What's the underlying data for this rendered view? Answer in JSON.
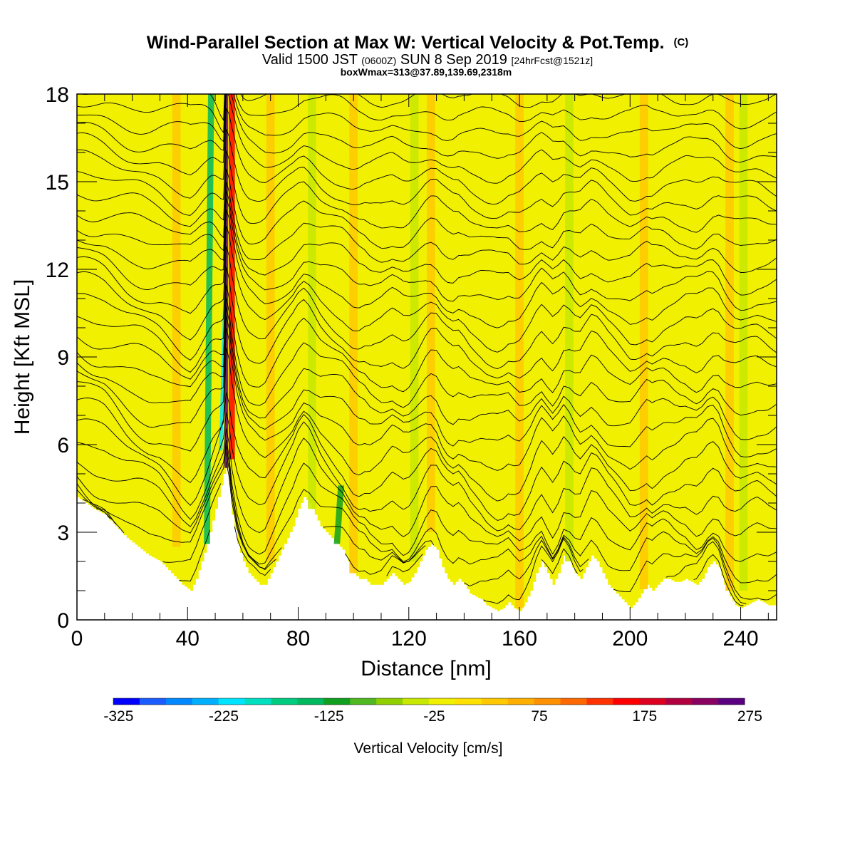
{
  "chart_data": {
    "type": "heatmap",
    "title": "Wind-Parallel Section at Max W: Vertical Velocity & Pot.Temp.",
    "title_mark": "(C)",
    "subtitle_main_1": "Valid 1500 JST",
    "subtitle_small_1": "(0600Z)",
    "subtitle_main_2": "SUN 8 Sep 2019",
    "subtitle_small_2": "[24hrFcst@1521z]",
    "subtitle_2": "boxWmax=313@37.89,139.69,2318m",
    "xlabel": "Distance [nm]",
    "ylabel": "Height [Kft MSL]",
    "xlim": [
      0,
      253
    ],
    "ylim": [
      0,
      18
    ],
    "x_ticks": [
      "0",
      "40",
      "80",
      "120",
      "160",
      "200",
      "240"
    ],
    "y_ticks": [
      "0",
      "3",
      "6",
      "9",
      "12",
      "15",
      "18"
    ],
    "colorbar": {
      "label": "Vertical Velocity [cm/s]",
      "tick_labels": [
        "-325",
        "-225",
        "-125",
        "-25",
        "75",
        "175",
        "275"
      ],
      "colors": [
        "#0000ff",
        "#1a5cff",
        "#0088ff",
        "#00b0ff",
        "#00e5ff",
        "#00e0c0",
        "#00cc80",
        "#00b860",
        "#10a020",
        "#50b820",
        "#90d000",
        "#c8e800",
        "#f0f000",
        "#ffe000",
        "#ffc800",
        "#ffaf00",
        "#ff9000",
        "#ff6800",
        "#ff3200",
        "#ff0000",
        "#dd0020",
        "#b00040",
        "#880060",
        "#5a0080"
      ]
    },
    "background_color": "#f0f000",
    "updraft_max_cm_s": 313,
    "max_location": "37.89,139.69",
    "max_height_m": 2318,
    "terrain_profile": [
      [
        0,
        4.2
      ],
      [
        3,
        4.0
      ],
      [
        6,
        3.8
      ],
      [
        10,
        3.6
      ],
      [
        14,
        3.2
      ],
      [
        18,
        2.8
      ],
      [
        22,
        2.5
      ],
      [
        26,
        2.2
      ],
      [
        30,
        2.0
      ],
      [
        34,
        1.6
      ],
      [
        38,
        1.2
      ],
      [
        41,
        1.0
      ],
      [
        43,
        1.4
      ],
      [
        45,
        2.0
      ],
      [
        47,
        2.6
      ],
      [
        49,
        3.4
      ],
      [
        51,
        4.2
      ],
      [
        53,
        5.0
      ],
      [
        54,
        5.2
      ],
      [
        55,
        4.6
      ],
      [
        56,
        3.6
      ],
      [
        58,
        2.6
      ],
      [
        60,
        2.0
      ],
      [
        62,
        1.6
      ],
      [
        64,
        1.4
      ],
      [
        66,
        1.2
      ],
      [
        68,
        1.2
      ],
      [
        70,
        1.6
      ],
      [
        72,
        2.0
      ],
      [
        74,
        2.4
      ],
      [
        76,
        2.8
      ],
      [
        78,
        3.2
      ],
      [
        80,
        3.8
      ],
      [
        82,
        4.2
      ],
      [
        84,
        4.0
      ],
      [
        86,
        3.6
      ],
      [
        88,
        3.2
      ],
      [
        90,
        3.0
      ],
      [
        92,
        2.8
      ],
      [
        94,
        2.6
      ],
      [
        96,
        2.4
      ],
      [
        98,
        2.0
      ],
      [
        100,
        1.6
      ],
      [
        102,
        1.4
      ],
      [
        104,
        1.4
      ],
      [
        106,
        1.2
      ],
      [
        108,
        1.2
      ],
      [
        110,
        1.2
      ],
      [
        112,
        1.4
      ],
      [
        114,
        1.6
      ],
      [
        116,
        1.4
      ],
      [
        118,
        1.2
      ],
      [
        120,
        1.3
      ],
      [
        122,
        1.6
      ],
      [
        124,
        2.0
      ],
      [
        126,
        2.4
      ],
      [
        128,
        2.6
      ],
      [
        130,
        2.4
      ],
      [
        132,
        1.8
      ],
      [
        134,
        1.4
      ],
      [
        136,
        1.2
      ],
      [
        138,
        1.4
      ],
      [
        140,
        1.2
      ],
      [
        142,
        0.9
      ],
      [
        144,
        0.8
      ],
      [
        146,
        0.7
      ],
      [
        148,
        0.5
      ],
      [
        150,
        0.4
      ],
      [
        152,
        0.3
      ],
      [
        154,
        0.4
      ],
      [
        156,
        0.6
      ],
      [
        158,
        0.4
      ],
      [
        160,
        0.3
      ],
      [
        162,
        0.6
      ],
      [
        164,
        1.0
      ],
      [
        166,
        1.6
      ],
      [
        168,
        2.0
      ],
      [
        170,
        1.6
      ],
      [
        172,
        1.2
      ],
      [
        174,
        1.6
      ],
      [
        176,
        2.2
      ],
      [
        178,
        2.0
      ],
      [
        180,
        1.6
      ],
      [
        182,
        1.4
      ],
      [
        184,
        1.8
      ],
      [
        186,
        2.2
      ],
      [
        188,
        2.0
      ],
      [
        190,
        1.6
      ],
      [
        192,
        1.2
      ],
      [
        194,
        1.0
      ],
      [
        196,
        0.8
      ],
      [
        198,
        0.6
      ],
      [
        200,
        0.4
      ],
      [
        202,
        0.6
      ],
      [
        204,
        0.9
      ],
      [
        206,
        1.2
      ],
      [
        208,
        1.0
      ],
      [
        210,
        1.2
      ],
      [
        212,
        1.4
      ],
      [
        214,
        1.4
      ],
      [
        216,
        1.3
      ],
      [
        218,
        1.3
      ],
      [
        220,
        1.4
      ],
      [
        222,
        1.3
      ],
      [
        224,
        1.2
      ],
      [
        226,
        1.4
      ],
      [
        228,
        1.8
      ],
      [
        230,
        2.0
      ],
      [
        232,
        1.8
      ],
      [
        234,
        1.2
      ],
      [
        236,
        0.8
      ],
      [
        238,
        0.5
      ],
      [
        240,
        0.4
      ],
      [
        242,
        0.5
      ],
      [
        244,
        0.6
      ],
      [
        246,
        0.7
      ],
      [
        248,
        0.6
      ],
      [
        250,
        0.5
      ],
      [
        253,
        0.5
      ]
    ],
    "isentrope_base_heights_kft": [
      0.6,
      1.0,
      1.4,
      1.8,
      2.3,
      2.8,
      3.4,
      4.0,
      4.6,
      5.2,
      5.9,
      6.5,
      7.1,
      7.7,
      8.3,
      8.9,
      9.5,
      10.1,
      10.7,
      11.3,
      11.9,
      12.5,
      13.1,
      13.7,
      14.3,
      14.9,
      15.5,
      16.1,
      16.7,
      17.3,
      17.9
    ],
    "wave_bands_nm": [
      {
        "x": 47,
        "y0": 2.5,
        "y1": 18,
        "value": -150
      },
      {
        "x": 52,
        "y0": 5.8,
        "y1": 11,
        "value": -225
      },
      {
        "x": 54,
        "y0": 5.2,
        "y1": 18,
        "value": 313
      },
      {
        "x": 56,
        "y0": 5.5,
        "y1": 18,
        "value": 150
      },
      {
        "x": 94,
        "y0": 2.4,
        "y1": 4.6,
        "value": -125
      },
      {
        "x": 36,
        "y0": 2.5,
        "y1": 18,
        "value": 30
      },
      {
        "x": 70,
        "y0": 2.0,
        "y1": 18,
        "value": 40
      },
      {
        "x": 100,
        "y0": 1.6,
        "y1": 18,
        "value": 45
      },
      {
        "x": 128,
        "y0": 3.0,
        "y1": 18,
        "value": 30
      },
      {
        "x": 160,
        "y0": 0.4,
        "y1": 18,
        "value": 40
      },
      {
        "x": 205,
        "y0": 1.0,
        "y1": 18,
        "value": 35
      },
      {
        "x": 236,
        "y0": 1.0,
        "y1": 18,
        "value": 45
      },
      {
        "x": 85,
        "y0": 3.0,
        "y1": 18,
        "value": -40
      },
      {
        "x": 122,
        "y0": 2.0,
        "y1": 18,
        "value": -35
      },
      {
        "x": 178,
        "y0": 2.0,
        "y1": 18,
        "value": -35
      },
      {
        "x": 241,
        "y0": 1.0,
        "y1": 18,
        "value": -40
      }
    ]
  }
}
